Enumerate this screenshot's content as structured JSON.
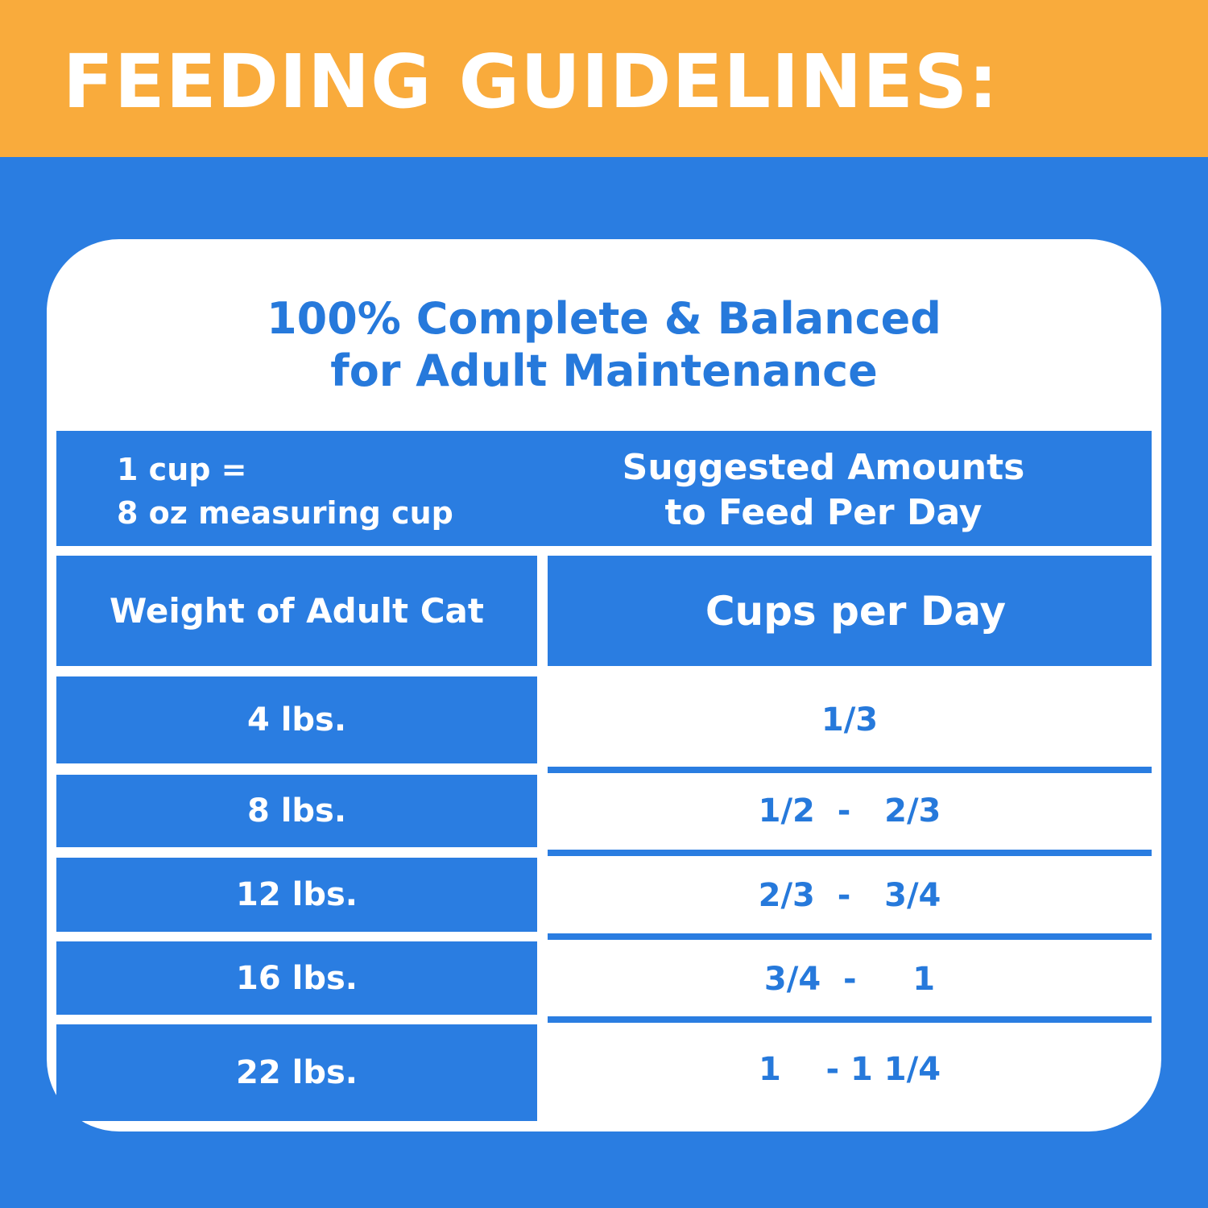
{
  "header": {
    "title": "FEEDING GUIDELINES:"
  },
  "card": {
    "subtitle": [
      "100% Complete & Balanced",
      "for Adult Maintenance"
    ]
  },
  "table": {
    "header": [
      [
        "1 cup =",
        "8 oz measuring cup"
      ],
      [
        "Suggested Amounts",
        "to Feed Per Day"
      ]
    ],
    "columns": [
      "Weight of Adult Cat",
      "Cups per Day"
    ],
    "rows": [
      [
        "4 lbs.",
        "1/3"
      ],
      [
        "8 lbs.",
        "1/2  -   2/3"
      ],
      [
        "12 lbs.",
        "2/3  -   3/4"
      ],
      [
        "16 lbs.",
        "3/4  -     1"
      ],
      [
        "22 lbs.",
        "1    - 1 1/4"
      ]
    ]
  }
}
